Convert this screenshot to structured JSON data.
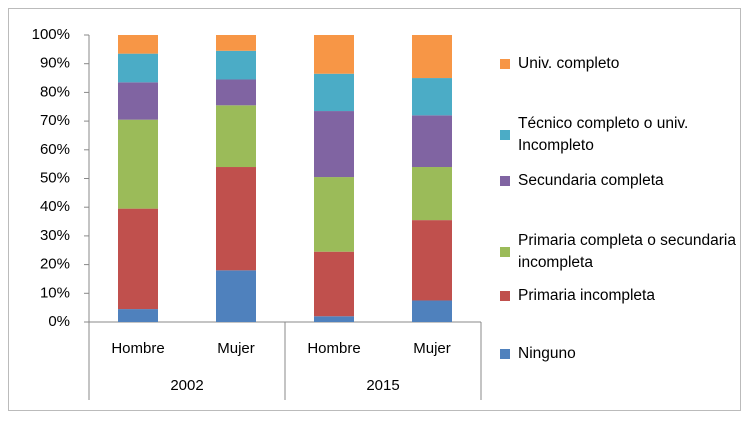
{
  "chart_data": {
    "type": "stacked_bar_100",
    "categories": [
      "Hombre",
      "Mujer",
      "Hombre",
      "Mujer"
    ],
    "group_labels": [
      "2002",
      "2015"
    ],
    "series": [
      {
        "name": "Ninguno",
        "color": "#4f81bd",
        "values": [
          4.5,
          18,
          2,
          7.5
        ]
      },
      {
        "name": "Primaria incompleta",
        "color": "#c0504d",
        "values": [
          35,
          36,
          22.5,
          28
        ]
      },
      {
        "name": "Primaria completa o secundaria incompleta",
        "color": "#9bbb59",
        "values": [
          31,
          21.5,
          26,
          18.5
        ]
      },
      {
        "name": "Secundaria completa",
        "color": "#8064a2",
        "values": [
          13,
          9,
          23,
          18
        ]
      },
      {
        "name": "Técnico completo o univ. Incompleto",
        "color": "#4bacc6",
        "values": [
          10,
          10,
          13,
          13
        ]
      },
      {
        "name": "Univ. completo",
        "color": "#f79646",
        "values": [
          6.5,
          5.5,
          13.5,
          15
        ]
      }
    ],
    "ylim": [
      0,
      100
    ],
    "yticks": [
      {
        "value": 0,
        "label": "0%"
      },
      {
        "value": 10,
        "label": "10%"
      },
      {
        "value": 20,
        "label": "20%"
      },
      {
        "value": 30,
        "label": "30%"
      },
      {
        "value": 40,
        "label": "40%"
      },
      {
        "value": 50,
        "label": "50%"
      },
      {
        "value": 60,
        "label": "60%"
      },
      {
        "value": 70,
        "label": "70%"
      },
      {
        "value": 80,
        "label": "80%"
      },
      {
        "value": 90,
        "label": "90%"
      },
      {
        "value": 100,
        "label": "100%"
      }
    ],
    "grid": false,
    "legend": "right"
  }
}
